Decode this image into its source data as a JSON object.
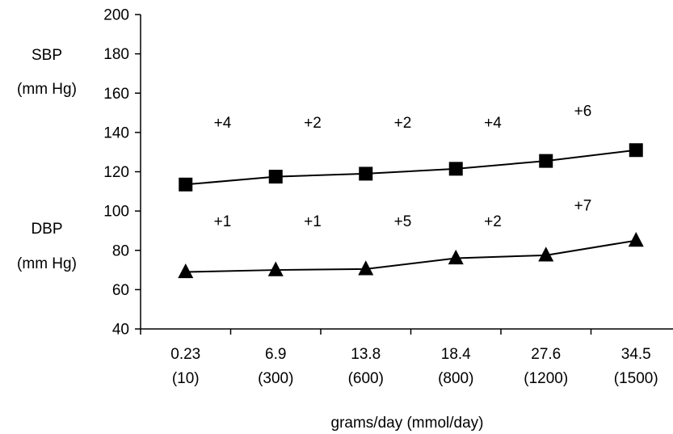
{
  "chart_data": {
    "type": "line",
    "categories": [
      {
        "top": "0.23",
        "bottom": "(10)"
      },
      {
        "top": "6.9",
        "bottom": "(300)"
      },
      {
        "top": "13.8",
        "bottom": "(600)"
      },
      {
        "top": "18.4",
        "bottom": "(800)"
      },
      {
        "top": "27.6",
        "bottom": "(1200)"
      },
      {
        "top": "34.5",
        "bottom": "(1500)"
      }
    ],
    "xlabel": "grams/day (mmol/day)",
    "ylim": [
      40,
      200
    ],
    "yticks": [
      40,
      60,
      80,
      100,
      120,
      140,
      160,
      180,
      200
    ],
    "grid": false,
    "series": [
      {
        "name": "SBP",
        "unit": "(mm Hg)",
        "marker": "square",
        "values": [
          113.5,
          117.5,
          119,
          121.5,
          125.5,
          131
        ],
        "increments": [
          "+4",
          "+2",
          "+2",
          "+4",
          "+6"
        ],
        "increment_y": [
          145,
          145,
          145,
          145,
          151
        ]
      },
      {
        "name": "DBP",
        "unit": "(mm Hg)",
        "marker": "triangle",
        "values": [
          69,
          70,
          70.5,
          76,
          77.5,
          85
        ],
        "increments": [
          "+1",
          "+1",
          "+5",
          "+2",
          "+7"
        ],
        "increment_y": [
          95,
          95,
          95,
          95,
          103
        ]
      }
    ]
  }
}
